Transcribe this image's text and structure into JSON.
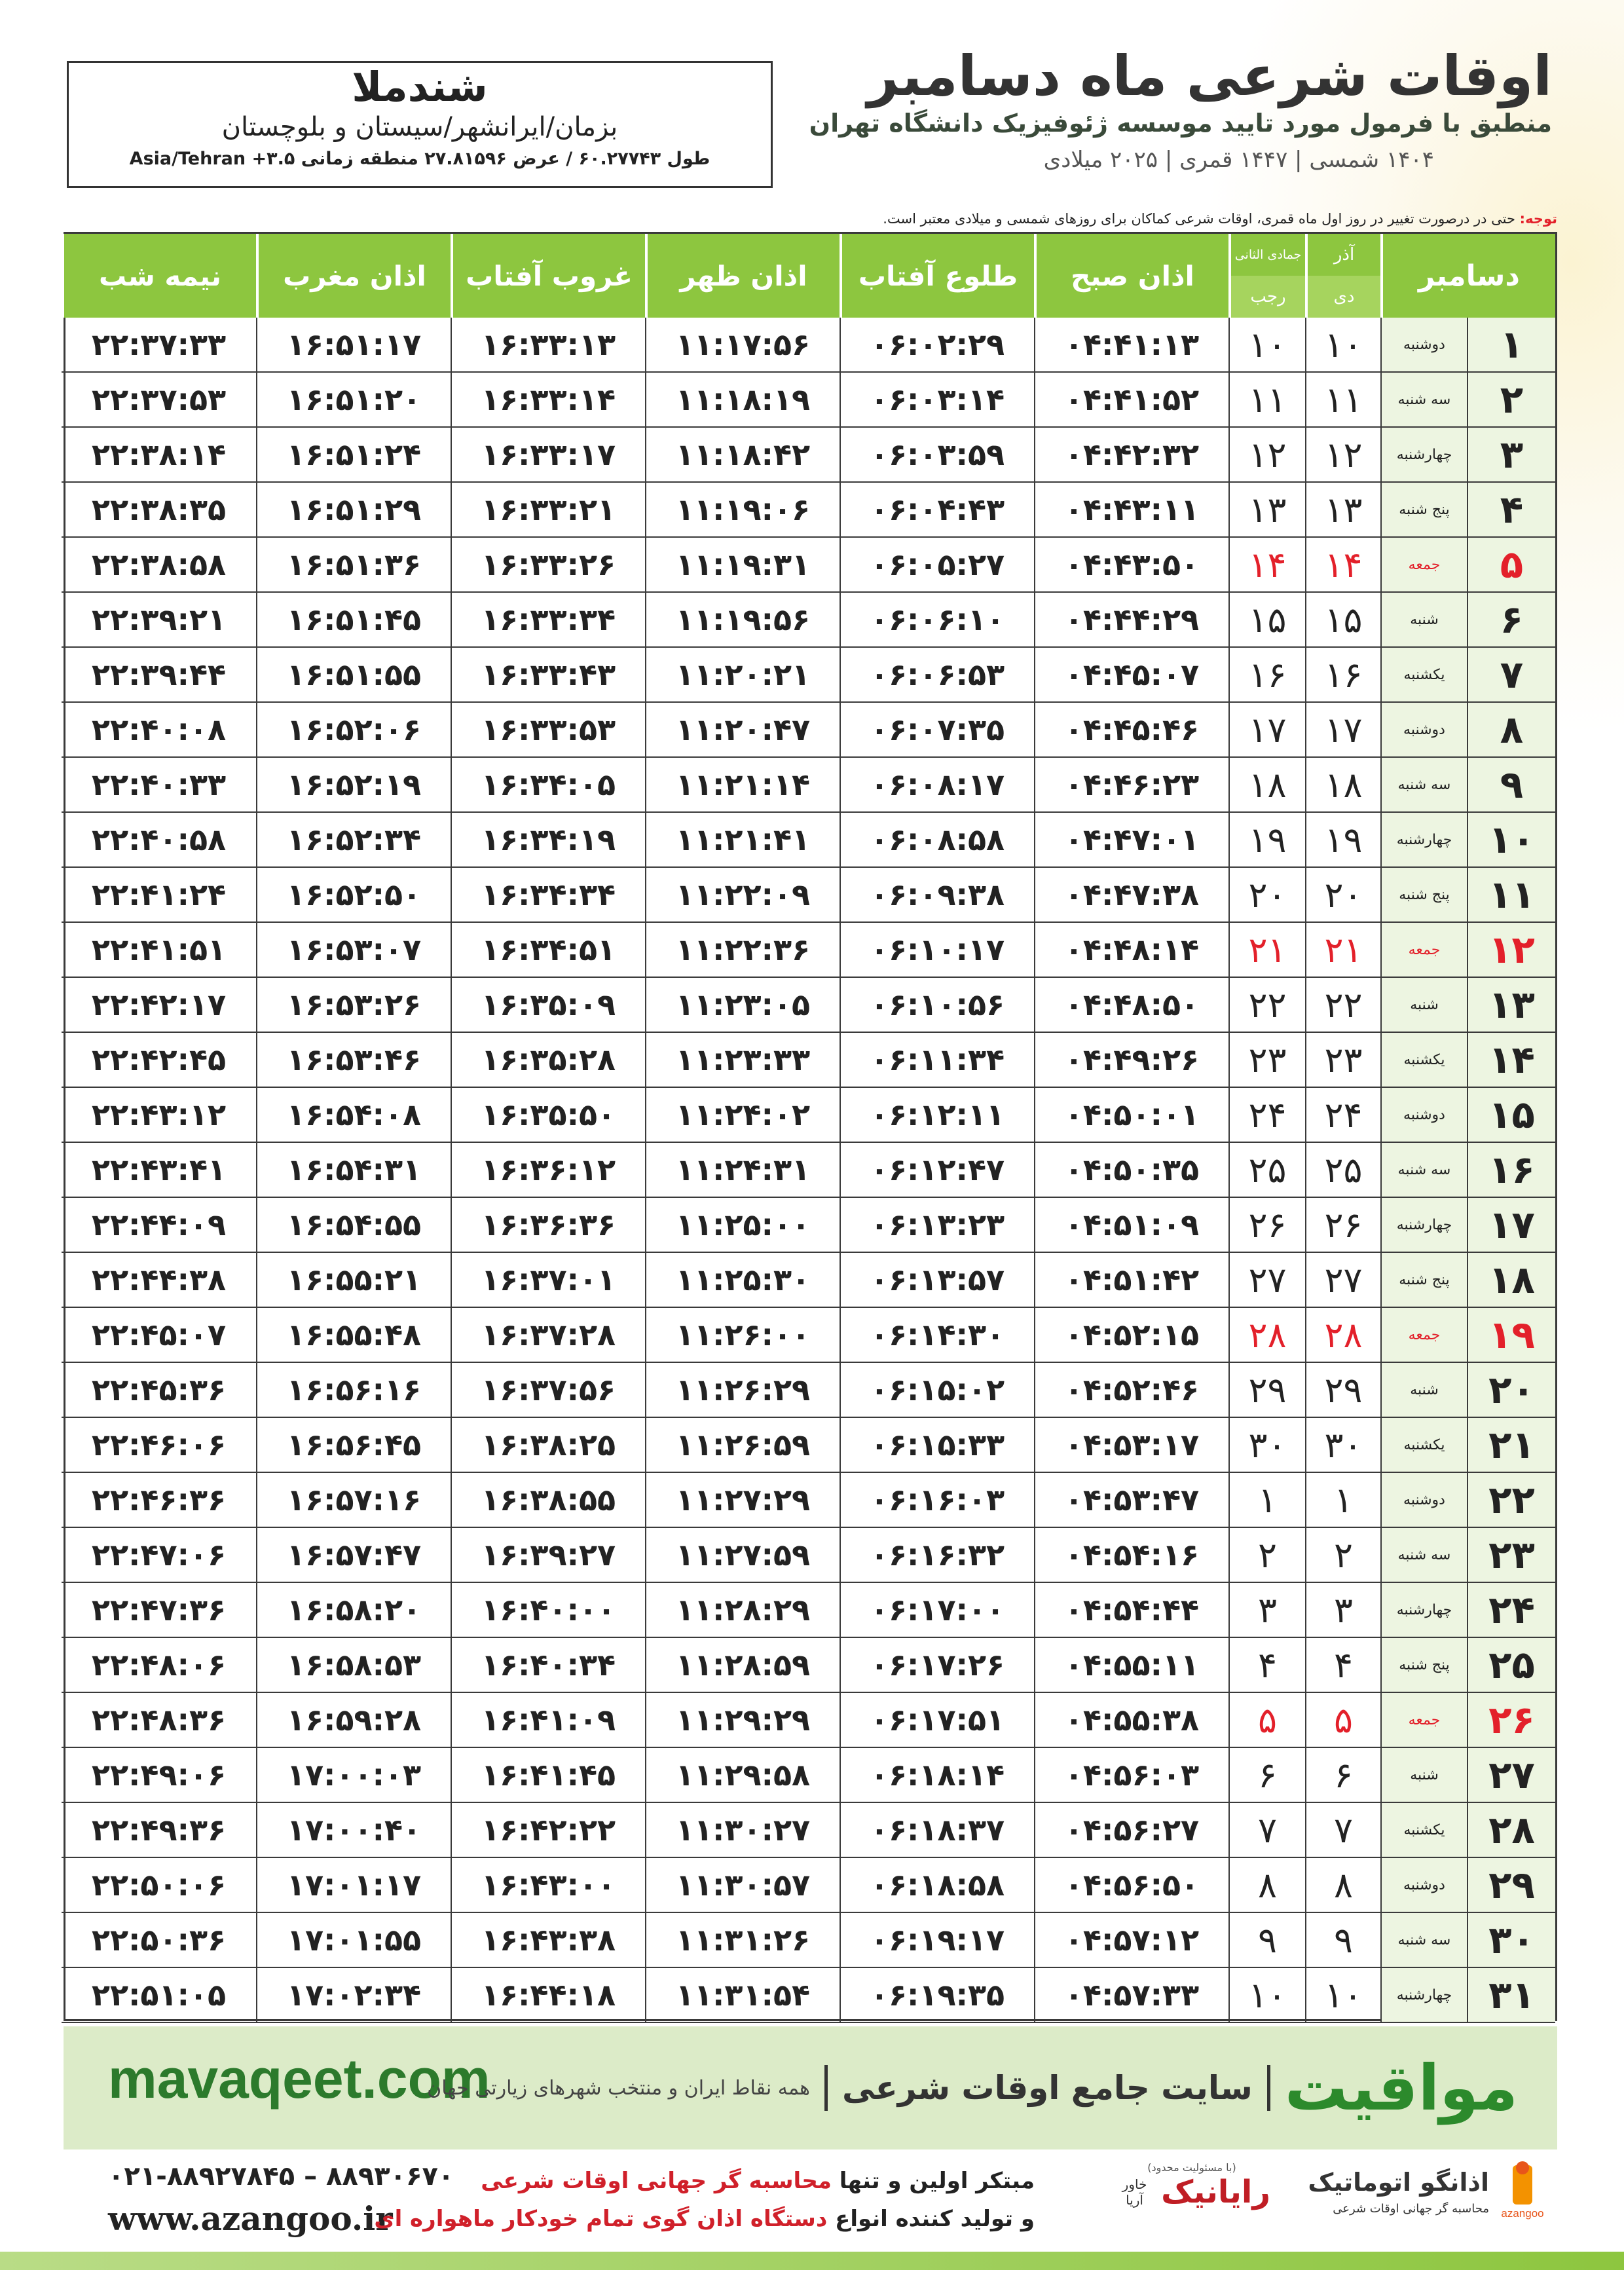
{
  "header": {
    "title": "اوقات شرعی ماه دسامبر",
    "subtitle": "منطبق با فرمول مورد تایید موسسه ژئوفیزیک دانشگاه تهران",
    "calendar": "۱۴۰۴ شمسی | ۱۴۴۷ قمری | ۲۰۲۵ میلادی"
  },
  "location": {
    "city": "شندملا",
    "region": "بزمان/ایرانشهر/سیستان و بلوچستان",
    "coordinates": "طول ۶۰.۲۷۷۴۳ / عرض ۲۷.۸۱۵۹۶ منطقه زمانی ۳.۵+ Asia/Tehran"
  },
  "note": {
    "label": "توجه:",
    "text": "حتی در درصورت تغییر در روز اول ماه قمری، اوقات شرعی کماکان برای روزهای شمسی و میلادی معتبر است."
  },
  "table": {
    "header": {
      "day": "دسامبر",
      "solar_top": "آذر",
      "solar_bottom": "دی",
      "lunar_top": "جمادی الثانی",
      "lunar_bottom": "رجب",
      "times": [
        "اذان صبح",
        "طلوع آفتاب",
        "اذان ظهر",
        "غروب آفتاب",
        "اذان مغرب",
        "نیمه شب"
      ]
    },
    "rows": [
      {
        "day": "۱",
        "weekday": "دوشنبه",
        "solar": "۱۰",
        "lunar": "۱۰",
        "times": [
          "۰۴:۴۱:۱۳",
          "۰۶:۰۲:۲۹",
          "۱۱:۱۷:۵۶",
          "۱۶:۳۳:۱۳",
          "۱۶:۵۱:۱۷",
          "۲۲:۳۷:۳۳"
        ]
      },
      {
        "day": "۲",
        "weekday": "سه شنبه",
        "solar": "۱۱",
        "lunar": "۱۱",
        "times": [
          "۰۴:۴۱:۵۲",
          "۰۶:۰۳:۱۴",
          "۱۱:۱۸:۱۹",
          "۱۶:۳۳:۱۴",
          "۱۶:۵۱:۲۰",
          "۲۲:۳۷:۵۳"
        ]
      },
      {
        "day": "۳",
        "weekday": "چهارشنبه",
        "solar": "۱۲",
        "lunar": "۱۲",
        "times": [
          "۰۴:۴۲:۳۲",
          "۰۶:۰۳:۵۹",
          "۱۱:۱۸:۴۲",
          "۱۶:۳۳:۱۷",
          "۱۶:۵۱:۲۴",
          "۲۲:۳۸:۱۴"
        ]
      },
      {
        "day": "۴",
        "weekday": "پنج شنبه",
        "solar": "۱۳",
        "lunar": "۱۳",
        "times": [
          "۰۴:۴۳:۱۱",
          "۰۶:۰۴:۴۳",
          "۱۱:۱۹:۰۶",
          "۱۶:۳۳:۲۱",
          "۱۶:۵۱:۲۹",
          "۲۲:۳۸:۳۵"
        ]
      },
      {
        "day": "۵",
        "weekday": "جمعه",
        "solar": "۱۴",
        "lunar": "۱۴",
        "color": "#e3202a",
        "times": [
          "۰۴:۴۳:۵۰",
          "۰۶:۰۵:۲۷",
          "۱۱:۱۹:۳۱",
          "۱۶:۳۳:۲۶",
          "۱۶:۵۱:۳۶",
          "۲۲:۳۸:۵۸"
        ]
      },
      {
        "day": "۶",
        "weekday": "شنبه",
        "solar": "۱۵",
        "lunar": "۱۵",
        "times": [
          "۰۴:۴۴:۲۹",
          "۰۶:۰۶:۱۰",
          "۱۱:۱۹:۵۶",
          "۱۶:۳۳:۳۴",
          "۱۶:۵۱:۴۵",
          "۲۲:۳۹:۲۱"
        ]
      },
      {
        "day": "۷",
        "weekday": "یکشنبه",
        "solar": "۱۶",
        "lunar": "۱۶",
        "times": [
          "۰۴:۴۵:۰۷",
          "۰۶:۰۶:۵۳",
          "۱۱:۲۰:۲۱",
          "۱۶:۳۳:۴۳",
          "۱۶:۵۱:۵۵",
          "۲۲:۳۹:۴۴"
        ]
      },
      {
        "day": "۸",
        "weekday": "دوشنبه",
        "solar": "۱۷",
        "lunar": "۱۷",
        "times": [
          "۰۴:۴۵:۴۶",
          "۰۶:۰۷:۳۵",
          "۱۱:۲۰:۴۷",
          "۱۶:۳۳:۵۳",
          "۱۶:۵۲:۰۶",
          "۲۲:۴۰:۰۸"
        ]
      },
      {
        "day": "۹",
        "weekday": "سه شنبه",
        "solar": "۱۸",
        "lunar": "۱۸",
        "times": [
          "۰۴:۴۶:۲۳",
          "۰۶:۰۸:۱۷",
          "۱۱:۲۱:۱۴",
          "۱۶:۳۴:۰۵",
          "۱۶:۵۲:۱۹",
          "۲۲:۴۰:۳۳"
        ]
      },
      {
        "day": "۱۰",
        "weekday": "چهارشنبه",
        "solar": "۱۹",
        "lunar": "۱۹",
        "times": [
          "۰۴:۴۷:۰۱",
          "۰۶:۰۸:۵۸",
          "۱۱:۲۱:۴۱",
          "۱۶:۳۴:۱۹",
          "۱۶:۵۲:۳۴",
          "۲۲:۴۰:۵۸"
        ]
      },
      {
        "day": "۱۱",
        "weekday": "پنج شنبه",
        "solar": "۲۰",
        "lunar": "۲۰",
        "times": [
          "۰۴:۴۷:۳۸",
          "۰۶:۰۹:۳۸",
          "۱۱:۲۲:۰۹",
          "۱۶:۳۴:۳۴",
          "۱۶:۵۲:۵۰",
          "۲۲:۴۱:۲۴"
        ]
      },
      {
        "day": "۱۲",
        "weekday": "جمعه",
        "solar": "۲۱",
        "lunar": "۲۱",
        "color": "#e3202a",
        "times": [
          "۰۴:۴۸:۱۴",
          "۰۶:۱۰:۱۷",
          "۱۱:۲۲:۳۶",
          "۱۶:۳۴:۵۱",
          "۱۶:۵۳:۰۷",
          "۲۲:۴۱:۵۱"
        ]
      },
      {
        "day": "۱۳",
        "weekday": "شنبه",
        "solar": "۲۲",
        "lunar": "۲۲",
        "times": [
          "۰۴:۴۸:۵۰",
          "۰۶:۱۰:۵۶",
          "۱۱:۲۳:۰۵",
          "۱۶:۳۵:۰۹",
          "۱۶:۵۳:۲۶",
          "۲۲:۴۲:۱۷"
        ]
      },
      {
        "day": "۱۴",
        "weekday": "یکشنبه",
        "solar": "۲۳",
        "lunar": "۲۳",
        "times": [
          "۰۴:۴۹:۲۶",
          "۰۶:۱۱:۳۴",
          "۱۱:۲۳:۳۳",
          "۱۶:۳۵:۲۸",
          "۱۶:۵۳:۴۶",
          "۲۲:۴۲:۴۵"
        ]
      },
      {
        "day": "۱۵",
        "weekday": "دوشنبه",
        "solar": "۲۴",
        "lunar": "۲۴",
        "times": [
          "۰۴:۵۰:۰۱",
          "۰۶:۱۲:۱۱",
          "۱۱:۲۴:۰۲",
          "۱۶:۳۵:۵۰",
          "۱۶:۵۴:۰۸",
          "۲۲:۴۳:۱۲"
        ]
      },
      {
        "day": "۱۶",
        "weekday": "سه شنبه",
        "solar": "۲۵",
        "lunar": "۲۵",
        "times": [
          "۰۴:۵۰:۳۵",
          "۰۶:۱۲:۴۷",
          "۱۱:۲۴:۳۱",
          "۱۶:۳۶:۱۲",
          "۱۶:۵۴:۳۱",
          "۲۲:۴۳:۴۱"
        ]
      },
      {
        "day": "۱۷",
        "weekday": "چهارشنبه",
        "solar": "۲۶",
        "lunar": "۲۶",
        "times": [
          "۰۴:۵۱:۰۹",
          "۰۶:۱۳:۲۳",
          "۱۱:۲۵:۰۰",
          "۱۶:۳۶:۳۶",
          "۱۶:۵۴:۵۵",
          "۲۲:۴۴:۰۹"
        ]
      },
      {
        "day": "۱۸",
        "weekday": "پنج شنبه",
        "solar": "۲۷",
        "lunar": "۲۷",
        "times": [
          "۰۴:۵۱:۴۲",
          "۰۶:۱۳:۵۷",
          "۱۱:۲۵:۳۰",
          "۱۶:۳۷:۰۱",
          "۱۶:۵۵:۲۱",
          "۲۲:۴۴:۳۸"
        ]
      },
      {
        "day": "۱۹",
        "weekday": "جمعه",
        "solar": "۲۸",
        "lunar": "۲۸",
        "color": "#e3202a",
        "times": [
          "۰۴:۵۲:۱۵",
          "۰۶:۱۴:۳۰",
          "۱۱:۲۶:۰۰",
          "۱۶:۳۷:۲۸",
          "۱۶:۵۵:۴۸",
          "۲۲:۴۵:۰۷"
        ]
      },
      {
        "day": "۲۰",
        "weekday": "شنبه",
        "solar": "۲۹",
        "lunar": "۲۹",
        "times": [
          "۰۴:۵۲:۴۶",
          "۰۶:۱۵:۰۲",
          "۱۱:۲۶:۲۹",
          "۱۶:۳۷:۵۶",
          "۱۶:۵۶:۱۶",
          "۲۲:۴۵:۳۶"
        ]
      },
      {
        "day": "۲۱",
        "weekday": "یکشنبه",
        "solar": "۳۰",
        "lunar": "۳۰",
        "times": [
          "۰۴:۵۳:۱۷",
          "۰۶:۱۵:۳۳",
          "۱۱:۲۶:۵۹",
          "۱۶:۳۸:۲۵",
          "۱۶:۵۶:۴۵",
          "۲۲:۴۶:۰۶"
        ]
      },
      {
        "day": "۲۲",
        "weekday": "دوشنبه",
        "solar": "۱",
        "lunar": "۱",
        "times": [
          "۰۴:۵۳:۴۷",
          "۰۶:۱۶:۰۳",
          "۱۱:۲۷:۲۹",
          "۱۶:۳۸:۵۵",
          "۱۶:۵۷:۱۶",
          "۲۲:۴۶:۳۶"
        ]
      },
      {
        "day": "۲۳",
        "weekday": "سه شنبه",
        "solar": "۲",
        "lunar": "۲",
        "times": [
          "۰۴:۵۴:۱۶",
          "۰۶:۱۶:۳۲",
          "۱۱:۲۷:۵۹",
          "۱۶:۳۹:۲۷",
          "۱۶:۵۷:۴۷",
          "۲۲:۴۷:۰۶"
        ]
      },
      {
        "day": "۲۴",
        "weekday": "چهارشنبه",
        "solar": "۳",
        "lunar": "۳",
        "times": [
          "۰۴:۵۴:۴۴",
          "۰۶:۱۷:۰۰",
          "۱۱:۲۸:۲۹",
          "۱۶:۴۰:۰۰",
          "۱۶:۵۸:۲۰",
          "۲۲:۴۷:۳۶"
        ]
      },
      {
        "day": "۲۵",
        "weekday": "پنج شنبه",
        "solar": "۴",
        "lunar": "۴",
        "times": [
          "۰۴:۵۵:۱۱",
          "۰۶:۱۷:۲۶",
          "۱۱:۲۸:۵۹",
          "۱۶:۴۰:۳۴",
          "۱۶:۵۸:۵۳",
          "۲۲:۴۸:۰۶"
        ]
      },
      {
        "day": "۲۶",
        "weekday": "جمعه",
        "solar": "۵",
        "lunar": "۵",
        "color": "#e3202a",
        "times": [
          "۰۴:۵۵:۳۸",
          "۰۶:۱۷:۵۱",
          "۱۱:۲۹:۲۹",
          "۱۶:۴۱:۰۹",
          "۱۶:۵۹:۲۸",
          "۲۲:۴۸:۳۶"
        ]
      },
      {
        "day": "۲۷",
        "weekday": "شنبه",
        "solar": "۶",
        "lunar": "۶",
        "times": [
          "۰۴:۵۶:۰۳",
          "۰۶:۱۸:۱۴",
          "۱۱:۲۹:۵۸",
          "۱۶:۴۱:۴۵",
          "۱۷:۰۰:۰۳",
          "۲۲:۴۹:۰۶"
        ]
      },
      {
        "day": "۲۸",
        "weekday": "یکشنبه",
        "solar": "۷",
        "lunar": "۷",
        "times": [
          "۰۴:۵۶:۲۷",
          "۰۶:۱۸:۳۷",
          "۱۱:۳۰:۲۷",
          "۱۶:۴۲:۲۲",
          "۱۷:۰۰:۴۰",
          "۲۲:۴۹:۳۶"
        ]
      },
      {
        "day": "۲۹",
        "weekday": "دوشنبه",
        "solar": "۸",
        "lunar": "۸",
        "times": [
          "۰۴:۵۶:۵۰",
          "۰۶:۱۸:۵۸",
          "۱۱:۳۰:۵۷",
          "۱۶:۴۳:۰۰",
          "۱۷:۰۱:۱۷",
          "۲۲:۵۰:۰۶"
        ]
      },
      {
        "day": "۳۰",
        "weekday": "سه شنبه",
        "solar": "۹",
        "lunar": "۹",
        "times": [
          "۰۴:۵۷:۱۲",
          "۰۶:۱۹:۱۷",
          "۱۱:۳۱:۲۶",
          "۱۶:۴۳:۳۸",
          "۱۷:۰۱:۵۵",
          "۲۲:۵۰:۳۶"
        ]
      },
      {
        "day": "۳۱",
        "weekday": "چهارشنبه",
        "solar": "۱۰",
        "lunar": "۱۰",
        "times": [
          "۰۴:۵۷:۳۳",
          "۰۶:۱۹:۳۵",
          "۱۱:۳۱:۵۴",
          "۱۶:۴۴:۱۸",
          "۱۷:۰۲:۳۴",
          "۲۲:۵۱:۰۵"
        ]
      }
    ]
  },
  "banner": {
    "url": "mavaqeet.com",
    "brand": "مواقیت",
    "tagline": "سایت جامع اوقات شرعی",
    "scope": "همه نقاط ایران و منتخب شهرهای زیارتی جهان"
  },
  "footer": {
    "phones": "۰۲۱-۸۸۹۲۷۸۴۵ – ۸۸۹۳۰۶۷۰",
    "website": "www.azangoo.ir",
    "line1_plain": "مبتکر اولین و تنها",
    "line1_red": "محاسبه گر جهانی اوقات شرعی",
    "line2_plain": "و تولید کننده انواع",
    "line2_red": "دستگاه اذان گوی تمام خودکار ماهواره ای",
    "logo1_name": "رایانیک",
    "logo1_sub": "خاور آریا",
    "logo1_note": "(با مسئولیت محدود)",
    "logo2_name": "اذانگو اتوماتیک",
    "logo2_sub": "محاسبه گر جهانی اوقات شرعی",
    "logo2_mark": "azangoo"
  }
}
